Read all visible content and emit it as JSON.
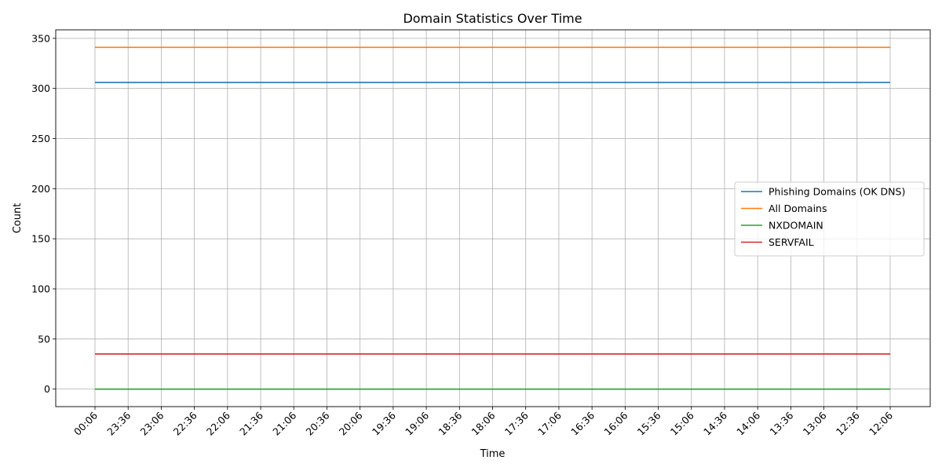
{
  "chart_data": {
    "type": "line",
    "title": "Domain Statistics Over Time",
    "xlabel": "Time",
    "ylabel": "Count",
    "categories": [
      "00:06",
      "23:36",
      "23:06",
      "22:36",
      "22:06",
      "21:36",
      "21:06",
      "20:36",
      "20:06",
      "19:36",
      "19:06",
      "18:36",
      "18:06",
      "17:36",
      "17:06",
      "16:36",
      "16:06",
      "15:36",
      "15:06",
      "14:36",
      "14:06",
      "13:36",
      "13:06",
      "12:36",
      "12:06"
    ],
    "ylim": [
      -17.5,
      358.5
    ],
    "yticks": [
      0,
      50,
      100,
      150,
      200,
      250,
      300,
      350
    ],
    "grid": true,
    "legend_position": "center-right",
    "series": [
      {
        "name": "Phishing Domains (OK DNS)",
        "color": "#1f77b4",
        "values": [
          306,
          306,
          306,
          306,
          306,
          306,
          306,
          306,
          306,
          306,
          306,
          306,
          306,
          306,
          306,
          306,
          306,
          306,
          306,
          306,
          306,
          306,
          306,
          306,
          306
        ]
      },
      {
        "name": "All Domains",
        "color": "#ff7f0e",
        "values": [
          341,
          341,
          341,
          341,
          341,
          341,
          341,
          341,
          341,
          341,
          341,
          341,
          341,
          341,
          341,
          341,
          341,
          341,
          341,
          341,
          341,
          341,
          341,
          341,
          341
        ]
      },
      {
        "name": "NXDOMAIN",
        "color": "#2ca02c",
        "values": [
          0,
          0,
          0,
          0,
          0,
          0,
          0,
          0,
          0,
          0,
          0,
          0,
          0,
          0,
          0,
          0,
          0,
          0,
          0,
          0,
          0,
          0,
          0,
          0,
          0
        ]
      },
      {
        "name": "SERVFAIL",
        "color": "#d62728",
        "values": [
          35,
          35,
          35,
          35,
          35,
          35,
          35,
          35,
          35,
          35,
          35,
          35,
          35,
          35,
          35,
          35,
          35,
          35,
          35,
          35,
          35,
          35,
          35,
          35,
          35
        ]
      }
    ]
  }
}
